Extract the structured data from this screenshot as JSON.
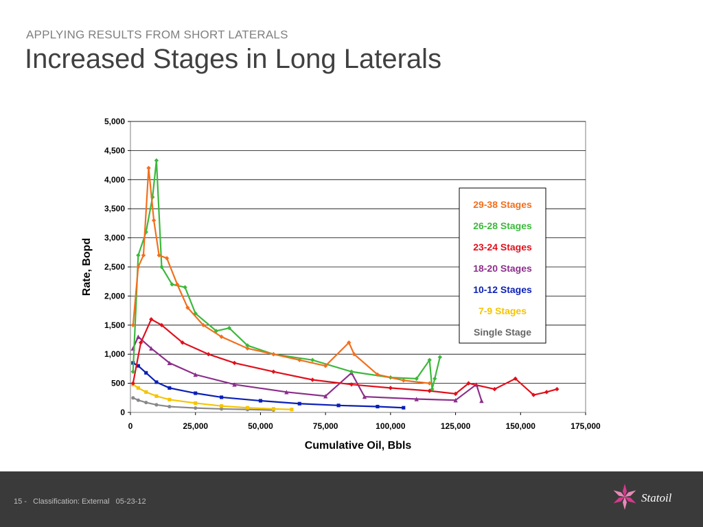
{
  "header": {
    "subtitle": "APPLYING RESULTS FROM SHORT LATERALS",
    "title": "Increased Stages in Long Laterals"
  },
  "footer": {
    "page": "15",
    "separator": " -   ",
    "classification": "Classification: External",
    "date": "05-23-12",
    "logo_text": "Statoil",
    "logo_icon": "star-flower-icon",
    "logo_color": "#d63a8c"
  },
  "chart_data": {
    "type": "scatter",
    "xlabel": "Cumulative Oil, Bbls",
    "ylabel": "Rate, Bopd",
    "xlim": [
      0,
      175000
    ],
    "ylim": [
      0,
      5000
    ],
    "x_ticks": [
      "0",
      "25,000",
      "50,000",
      "75,000",
      "100,000",
      "125,000",
      "150,000",
      "175,000"
    ],
    "y_ticks": [
      "0",
      "500",
      "1,000",
      "1,500",
      "2,000",
      "2,500",
      "3,000",
      "3,500",
      "4,000",
      "4,500",
      "5,000"
    ],
    "grid": "horizontal",
    "legend": "right",
    "series": [
      {
        "name": "29-38 Stages",
        "color": "#f26f1d",
        "marker": "diamond",
        "points": [
          [
            1000,
            1500
          ],
          [
            3000,
            2500
          ],
          [
            5000,
            2700
          ],
          [
            7000,
            4200
          ],
          [
            9000,
            3300
          ],
          [
            11000,
            2700
          ],
          [
            14000,
            2650
          ],
          [
            18000,
            2200
          ],
          [
            22000,
            1800
          ],
          [
            28000,
            1500
          ],
          [
            35000,
            1300
          ],
          [
            45000,
            1100
          ],
          [
            55000,
            1000
          ],
          [
            65000,
            900
          ],
          [
            75000,
            800
          ],
          [
            84000,
            1200
          ],
          [
            86000,
            1000
          ],
          [
            95000,
            650
          ],
          [
            105000,
            550
          ],
          [
            115000,
            500
          ]
        ]
      },
      {
        "name": "26-28 Stages",
        "color": "#3cb83c",
        "marker": "diamond",
        "points": [
          [
            1000,
            700
          ],
          [
            3000,
            2700
          ],
          [
            6000,
            3100
          ],
          [
            8500,
            3700
          ],
          [
            10000,
            4330
          ],
          [
            12000,
            2500
          ],
          [
            16000,
            2200
          ],
          [
            21000,
            2150
          ],
          [
            25000,
            1700
          ],
          [
            33000,
            1400
          ],
          [
            38000,
            1450
          ],
          [
            45000,
            1150
          ],
          [
            55000,
            1000
          ],
          [
            70000,
            900
          ],
          [
            85000,
            700
          ],
          [
            100000,
            600
          ],
          [
            110000,
            580
          ],
          [
            115000,
            900
          ],
          [
            116000,
            400
          ],
          [
            117000,
            580
          ],
          [
            119000,
            950
          ]
        ]
      },
      {
        "name": "23-24 Stages",
        "color": "#e0101c",
        "marker": "diamond",
        "points": [
          [
            1000,
            500
          ],
          [
            4000,
            1200
          ],
          [
            8000,
            1600
          ],
          [
            12000,
            1500
          ],
          [
            20000,
            1200
          ],
          [
            30000,
            1000
          ],
          [
            40000,
            850
          ],
          [
            55000,
            700
          ],
          [
            70000,
            560
          ],
          [
            85000,
            480
          ],
          [
            100000,
            420
          ],
          [
            115000,
            370
          ],
          [
            125000,
            320
          ],
          [
            130000,
            500
          ],
          [
            140000,
            400
          ],
          [
            148000,
            580
          ],
          [
            155000,
            300
          ],
          [
            160000,
            350
          ],
          [
            164000,
            400
          ]
        ]
      },
      {
        "name": "18-20 Stages",
        "color": "#8b2f8b",
        "marker": "triangle",
        "points": [
          [
            1000,
            1100
          ],
          [
            3000,
            1300
          ],
          [
            8000,
            1100
          ],
          [
            15000,
            850
          ],
          [
            25000,
            650
          ],
          [
            40000,
            480
          ],
          [
            60000,
            350
          ],
          [
            75000,
            280
          ],
          [
            85000,
            680
          ],
          [
            90000,
            270
          ],
          [
            110000,
            230
          ],
          [
            125000,
            210
          ],
          [
            133000,
            480
          ],
          [
            135000,
            200
          ]
        ]
      },
      {
        "name": "10-12 Stages",
        "color": "#0a1fb5",
        "marker": "square",
        "points": [
          [
            1000,
            850
          ],
          [
            3000,
            800
          ],
          [
            6000,
            680
          ],
          [
            10000,
            520
          ],
          [
            15000,
            420
          ],
          [
            25000,
            330
          ],
          [
            35000,
            260
          ],
          [
            50000,
            200
          ],
          [
            65000,
            150
          ],
          [
            80000,
            120
          ],
          [
            95000,
            100
          ],
          [
            105000,
            80
          ]
        ]
      },
      {
        "name": "7-9 Stages",
        "color": "#f5c400",
        "marker": "square",
        "points": [
          [
            1000,
            480
          ],
          [
            3000,
            420
          ],
          [
            6000,
            350
          ],
          [
            10000,
            280
          ],
          [
            15000,
            220
          ],
          [
            25000,
            160
          ],
          [
            35000,
            110
          ],
          [
            45000,
            80
          ],
          [
            55000,
            60
          ],
          [
            62000,
            50
          ]
        ]
      },
      {
        "name": "Single Stage",
        "color": "#888888",
        "marker": "circle",
        "points": [
          [
            1000,
            250
          ],
          [
            3000,
            210
          ],
          [
            6000,
            170
          ],
          [
            10000,
            130
          ],
          [
            15000,
            100
          ],
          [
            25000,
            75
          ],
          [
            35000,
            60
          ],
          [
            45000,
            50
          ],
          [
            55000,
            40
          ]
        ]
      }
    ]
  }
}
